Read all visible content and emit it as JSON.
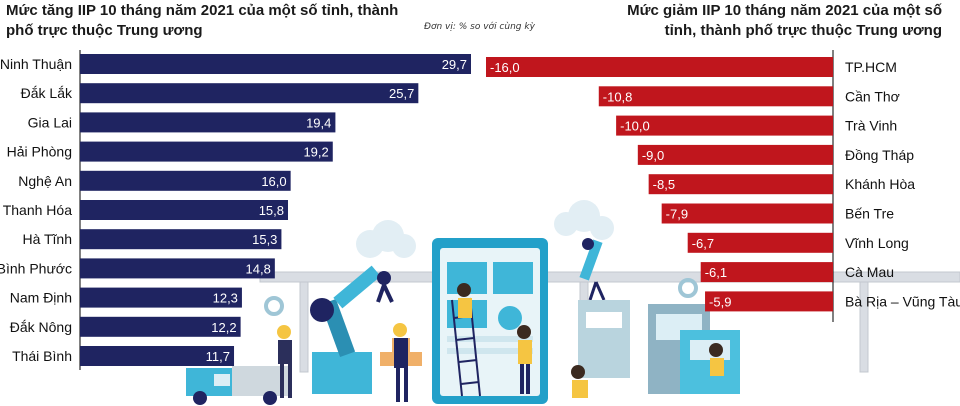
{
  "titles": {
    "left": "Mức tăng IIP 10 tháng năm 2021 của một số tỉnh, thành phố trực thuộc Trung ương",
    "right": "Mức giảm IIP 10 tháng năm 2021 của một số tỉnh, thành phố trực thuộc Trung ương"
  },
  "unit_note": "Đơn vị: % so với cùng kỳ",
  "colors": {
    "increase_bar": "#1f2461",
    "decrease_bar": "#c0161d",
    "axis_line": "#000000"
  },
  "chart_data": [
    {
      "type": "bar",
      "orientation": "horizontal",
      "title": "Mức tăng IIP 10 tháng năm 2021 của một số tỉnh, thành phố trực thuộc Trung ương",
      "categories": [
        "Ninh Thuận",
        "Đắk Lắk",
        "Gia Lai",
        "Hải Phòng",
        "Nghệ An",
        "Thanh Hóa",
        "Hà Tĩnh",
        "Bình Phước",
        "Nam Định",
        "Đắk Nông",
        "Thái Bình"
      ],
      "values": [
        29.7,
        25.7,
        19.4,
        19.2,
        16.0,
        15.8,
        15.3,
        14.8,
        12.3,
        12.2,
        11.7
      ],
      "value_labels": [
        "29,7",
        "25,7",
        "19,4",
        "19,2",
        "16,0",
        "15,8",
        "15,3",
        "14,8",
        "12,3",
        "12,2",
        "11,7"
      ],
      "xlim": [
        0,
        30
      ],
      "grid": false,
      "legend": "none"
    },
    {
      "type": "bar",
      "orientation": "horizontal",
      "title": "Mức giảm IIP 10 tháng năm 2021 của một số tỉnh, thành phố trực thuộc Trung ương",
      "categories": [
        "TP.HCM",
        "Cần Thơ",
        "Trà Vinh",
        "Đồng Tháp",
        "Khánh Hòa",
        "Bến Tre",
        "Vĩnh Long",
        "Cà Mau",
        "Bà Rịa – Vũng Tàu"
      ],
      "values": [
        -16.0,
        -10.8,
        -10.0,
        -9.0,
        -8.5,
        -7.9,
        -6.7,
        -6.1,
        -5.9
      ],
      "value_labels": [
        "-16,0",
        "-10,8",
        "-10,0",
        "-9,0",
        "-8,5",
        "-7,9",
        "-6,7",
        "-6,1",
        "-5,9"
      ],
      "xlim": [
        -16.5,
        0
      ],
      "grid": false,
      "legend": "none"
    }
  ]
}
